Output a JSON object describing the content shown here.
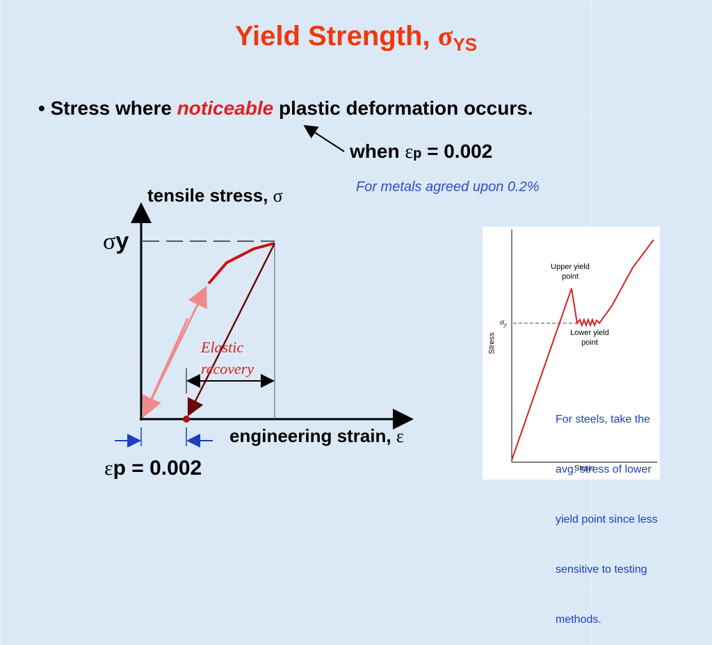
{
  "title": {
    "text": "Yield Strength, ",
    "symbol": "σ",
    "subscript": "YS"
  },
  "bullet": {
    "marker": "•",
    "before": "Stress where ",
    "emphasis": "noticeable",
    "after": " plastic deformation occurs."
  },
  "callout": {
    "prefix": "when ",
    "symbol": "ε",
    "subscript": "p",
    "suffix": " = 0.002"
  },
  "note": "For metals agreed upon 0.2%",
  "diagram": {
    "y_axis_label": "tensile stress, ",
    "y_axis_symbol": "σ",
    "yield_symbol": "σ",
    "yield_subscript": "y",
    "recovery_label": [
      "Elastic",
      "recovery"
    ],
    "x_axis_label": "engineering strain, ",
    "x_axis_symbol": "ε",
    "offset": {
      "symbol": "ε",
      "subscript": "p",
      "suffix": " = 0.002"
    }
  },
  "inset": {
    "upper_label": [
      "Upper yield",
      "point"
    ],
    "lower_label": [
      "Lower yield",
      "point"
    ],
    "sigma": "σ",
    "sigma_subscript": "y",
    "y_label": "Stress",
    "x_label": "Strain",
    "note": [
      "For steels, take the",
      "avg. stress of lower",
      "yield point since less",
      "sensitive to testing",
      "methods."
    ]
  }
}
